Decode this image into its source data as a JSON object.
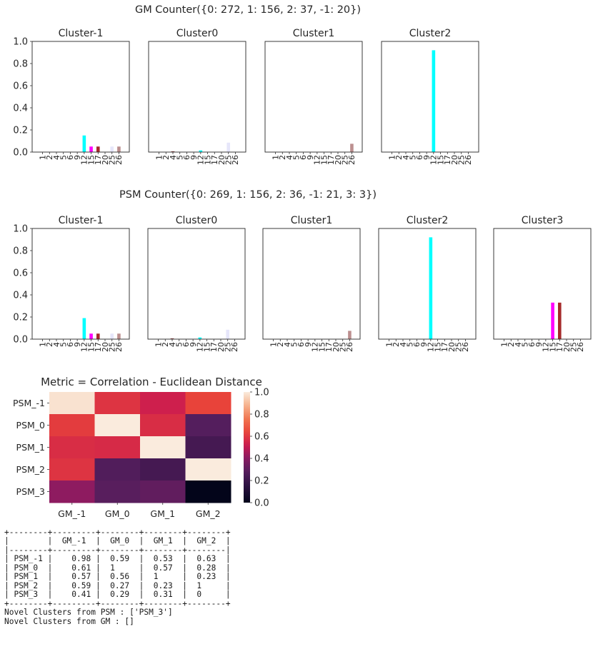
{
  "colors": {
    "1": "#d8bfbf",
    "2": "#c9b8b8",
    "4": "#8b3a3a",
    "5": "#b09090",
    "6": "#9e8e8e",
    "9": "#c8a8a8",
    "12": "#00ffff",
    "15": "#ff00ff",
    "17": "#a52a2a",
    "20": "#bfa0a0",
    "25": "#e6e6fa",
    "26": "#bc8f8f"
  },
  "categories": [
    "1",
    "2",
    "4",
    "5",
    "6",
    "9",
    "12",
    "15",
    "17",
    "20",
    "25",
    "26"
  ],
  "chart_data": [
    {
      "type": "bar",
      "title": "GM Counter({0: 272, 1: 156, 2: 37, -1: 20})",
      "ylim": [
        0,
        1
      ],
      "yticks": [
        "0.0",
        "0.2",
        "0.4",
        "0.6",
        "0.8",
        "1.0"
      ],
      "panels": [
        {
          "title": "Cluster-1",
          "values": [
            0,
            0,
            0,
            0,
            0,
            0,
            0.15,
            0.05,
            0.05,
            0,
            0.05,
            0.05
          ]
        },
        {
          "title": "Cluster0",
          "values": [
            0,
            0,
            0.007,
            0,
            0,
            0,
            0.015,
            0,
            0,
            0,
            0.085,
            0
          ]
        },
        {
          "title": "Cluster1",
          "values": [
            0,
            0,
            0,
            0,
            0,
            0,
            0,
            0,
            0,
            0,
            0,
            0.075
          ]
        },
        {
          "title": "Cluster2",
          "values": [
            0,
            0,
            0,
            0,
            0,
            0,
            0.92,
            0,
            0,
            0,
            0,
            0
          ]
        }
      ]
    },
    {
      "type": "bar",
      "title": "PSM Counter({0: 269, 1: 156, 2: 36, -1: 21, 3: 3})",
      "ylim": [
        0,
        1
      ],
      "yticks": [
        "0.0",
        "0.2",
        "0.4",
        "0.6",
        "0.8",
        "1.0"
      ],
      "panels": [
        {
          "title": "Cluster-1",
          "values": [
            0,
            0,
            0,
            0,
            0,
            0,
            0.19,
            0.05,
            0.05,
            0,
            0.05,
            0.05
          ]
        },
        {
          "title": "Cluster0",
          "values": [
            0,
            0,
            0.007,
            0,
            0,
            0,
            0.015,
            0,
            0,
            0,
            0.085,
            0
          ]
        },
        {
          "title": "Cluster1",
          "values": [
            0,
            0,
            0,
            0,
            0,
            0,
            0,
            0,
            0,
            0,
            0,
            0.075
          ]
        },
        {
          "title": "Cluster2",
          "values": [
            0,
            0,
            0,
            0,
            0,
            0,
            0.92,
            0,
            0,
            0,
            0,
            0
          ]
        },
        {
          "title": "Cluster3",
          "values": [
            0,
            0,
            0,
            0,
            0,
            0,
            0,
            0.33,
            0.33,
            0,
            0,
            0
          ]
        }
      ]
    },
    {
      "type": "heatmap",
      "title": "Metric = Correlation - Euclidean Distance",
      "x": [
        "GM_-1",
        "GM_0",
        "GM_1",
        "GM_2"
      ],
      "y": [
        "PSM_-1",
        "PSM_0",
        "PSM_1",
        "PSM_2",
        "PSM_3"
      ],
      "values": [
        [
          0.98,
          0.59,
          0.53,
          0.63
        ],
        [
          0.61,
          1,
          0.57,
          0.28
        ],
        [
          0.57,
          0.56,
          1,
          0.23
        ],
        [
          0.59,
          0.27,
          0.23,
          1
        ],
        [
          0.41,
          0.29,
          0.31,
          0
        ]
      ],
      "colorbar_ticks": [
        "0.0",
        "0.2",
        "0.4",
        "0.6",
        "0.8",
        "1.0"
      ]
    }
  ],
  "text_output": {
    "lines": [
      "+--------+---------+--------+--------+--------+",
      "|        |  GM_-1  |  GM_0  |  GM_1  |  GM_2  |",
      "|--------+---------+--------+--------+--------|",
      "| PSM_-1 |    0.98 |  0.59  |  0.53  |  0.63  |",
      "| PSM_0  |    0.61 |  1     |  0.57  |  0.28  |",
      "| PSM_1  |    0.57 |  0.56  |  1     |  0.23  |",
      "| PSM_2  |    0.59 |  0.27  |  0.23  |  1     |",
      "| PSM_3  |    0.41 |  0.29  |  0.31  |  0     |",
      "+--------+---------+--------+--------+--------+",
      "Novel Clusters from PSM : ['PSM_3']",
      "Novel Clusters from GM : []"
    ]
  }
}
